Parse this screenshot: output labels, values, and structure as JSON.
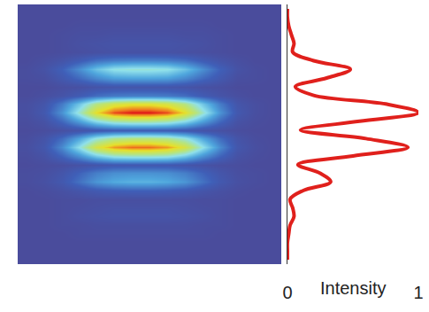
{
  "chart_data": [
    {
      "type": "heatmap",
      "tick_labels": false,
      "zlim": [
        0,
        1
      ],
      "cells": [
        [
          0,
          0,
          0,
          0,
          0,
          0,
          0,
          0,
          0,
          0,
          0,
          0,
          0,
          0,
          0
        ],
        [
          0,
          0,
          0,
          0,
          0,
          0,
          0,
          0,
          0,
          0,
          0,
          0,
          0,
          0,
          0
        ],
        [
          0,
          0,
          0,
          0.01,
          0.01,
          0.01,
          0.01,
          0.01,
          0.01,
          0.01,
          0.01,
          0,
          0,
          0,
          0
        ],
        [
          0,
          0,
          0.01,
          0.02,
          0.02,
          0.03,
          0.03,
          0.03,
          0.03,
          0.02,
          0.02,
          0.01,
          0,
          0,
          0
        ],
        [
          0,
          0,
          0.01,
          0.03,
          0.04,
          0.05,
          0.05,
          0.05,
          0.05,
          0.04,
          0.03,
          0.01,
          0,
          0,
          0
        ],
        [
          0,
          0,
          0.01,
          0.02,
          0.03,
          0.04,
          0.04,
          0.04,
          0.04,
          0.03,
          0.02,
          0.01,
          0,
          0,
          0
        ],
        [
          0,
          0.02,
          0.05,
          0.1,
          0.16,
          0.19,
          0.2,
          0.2,
          0.19,
          0.16,
          0.1,
          0.05,
          0.02,
          0,
          0
        ],
        [
          0.01,
          0.04,
          0.12,
          0.24,
          0.37,
          0.46,
          0.48,
          0.48,
          0.46,
          0.37,
          0.24,
          0.12,
          0.04,
          0.01,
          0
        ],
        [
          0.01,
          0.02,
          0.08,
          0.15,
          0.23,
          0.29,
          0.3,
          0.3,
          0.29,
          0.23,
          0.15,
          0.08,
          0.02,
          0.01,
          0
        ],
        [
          0,
          0,
          0.02,
          0.03,
          0.05,
          0.06,
          0.06,
          0.06,
          0.06,
          0.05,
          0.03,
          0.02,
          0,
          0,
          0
        ],
        [
          0,
          0.02,
          0.05,
          0.1,
          0.16,
          0.19,
          0.2,
          0.2,
          0.19,
          0.16,
          0.1,
          0.05,
          0.02,
          0,
          0
        ],
        [
          0.02,
          0.06,
          0.19,
          0.38,
          0.59,
          0.71,
          0.75,
          0.75,
          0.71,
          0.59,
          0.38,
          0.19,
          0.06,
          0.02,
          0
        ],
        [
          0.02,
          0.08,
          0.25,
          0.5,
          0.78,
          0.95,
          1,
          1,
          0.95,
          0.78,
          0.5,
          0.25,
          0.08,
          0.02,
          0
        ],
        [
          0.01,
          0.04,
          0.14,
          0.28,
          0.43,
          0.52,
          0.55,
          0.55,
          0.52,
          0.43,
          0.28,
          0.14,
          0.04,
          0.01,
          0
        ],
        [
          0,
          0.01,
          0.03,
          0.05,
          0.08,
          0.1,
          0.1,
          0.1,
          0.1,
          0.08,
          0.05,
          0.03,
          0.01,
          0,
          0
        ],
        [
          0.01,
          0.05,
          0.15,
          0.3,
          0.47,
          0.57,
          0.6,
          0.6,
          0.57,
          0.47,
          0.3,
          0.15,
          0.05,
          0.01,
          0
        ],
        [
          0.02,
          0.07,
          0.23,
          0.46,
          0.72,
          0.87,
          0.92,
          0.92,
          0.87,
          0.72,
          0.46,
          0.23,
          0.07,
          0.02,
          0
        ],
        [
          0.01,
          0.04,
          0.13,
          0.25,
          0.39,
          0.48,
          0.5,
          0.5,
          0.48,
          0.39,
          0.25,
          0.13,
          0.04,
          0.01,
          0
        ],
        [
          0,
          0.01,
          0.02,
          0.04,
          0.06,
          0.08,
          0.08,
          0.08,
          0.08,
          0.06,
          0.04,
          0.02,
          0.01,
          0,
          0
        ],
        [
          0.01,
          0.02,
          0.06,
          0.13,
          0.2,
          0.24,
          0.25,
          0.25,
          0.24,
          0.2,
          0.13,
          0.06,
          0.02,
          0.01,
          0
        ],
        [
          0.01,
          0.03,
          0.08,
          0.17,
          0.26,
          0.31,
          0.33,
          0.33,
          0.31,
          0.26,
          0.17,
          0.08,
          0.03,
          0.01,
          0
        ],
        [
          0,
          0.01,
          0.03,
          0.06,
          0.09,
          0.11,
          0.12,
          0.12,
          0.11,
          0.09,
          0.06,
          0.03,
          0.01,
          0,
          0
        ],
        [
          0,
          0,
          0.01,
          0.01,
          0.02,
          0.02,
          0.02,
          0.02,
          0.02,
          0.02,
          0.01,
          0.01,
          0,
          0,
          0
        ],
        [
          0,
          0,
          0.01,
          0.02,
          0.03,
          0.04,
          0.04,
          0.04,
          0.04,
          0.03,
          0.02,
          0.01,
          0,
          0,
          0
        ],
        [
          0,
          0,
          0.01,
          0.03,
          0.04,
          0.05,
          0.05,
          0.05,
          0.05,
          0.04,
          0.03,
          0.01,
          0,
          0,
          0
        ],
        [
          0,
          0,
          0.01,
          0.01,
          0.02,
          0.02,
          0.02,
          0.02,
          0.02,
          0.02,
          0.01,
          0.01,
          0,
          0,
          0
        ],
        [
          0,
          0,
          0,
          0.01,
          0.01,
          0.01,
          0.01,
          0.01,
          0.01,
          0.01,
          0.01,
          0,
          0,
          0,
          0
        ],
        [
          0,
          0,
          0,
          0,
          0,
          0,
          0,
          0,
          0,
          0,
          0,
          0,
          0,
          0,
          0
        ],
        [
          0,
          0,
          0,
          0,
          0,
          0,
          0,
          0,
          0,
          0,
          0,
          0,
          0,
          0,
          0
        ],
        [
          0,
          0,
          0,
          0,
          0,
          0,
          0,
          0,
          0,
          0,
          0,
          0,
          0,
          0,
          0
        ]
      ]
    },
    {
      "type": "line",
      "color": "#e0201c",
      "xlabel": "Intensity",
      "xlim": [
        0,
        1
      ],
      "xticks": [
        0,
        1
      ],
      "grid": false,
      "tick_labels": "x",
      "values": [
        0,
        0,
        0.01,
        0.03,
        0.05,
        0.04,
        0.2,
        0.48,
        0.3,
        0.06,
        0.2,
        0.75,
        1.0,
        0.55,
        0.1,
        0.6,
        0.92,
        0.5,
        0.08,
        0.25,
        0.33,
        0.12,
        0.02,
        0.04,
        0.05,
        0.02,
        0.01,
        0,
        0,
        0
      ]
    }
  ]
}
